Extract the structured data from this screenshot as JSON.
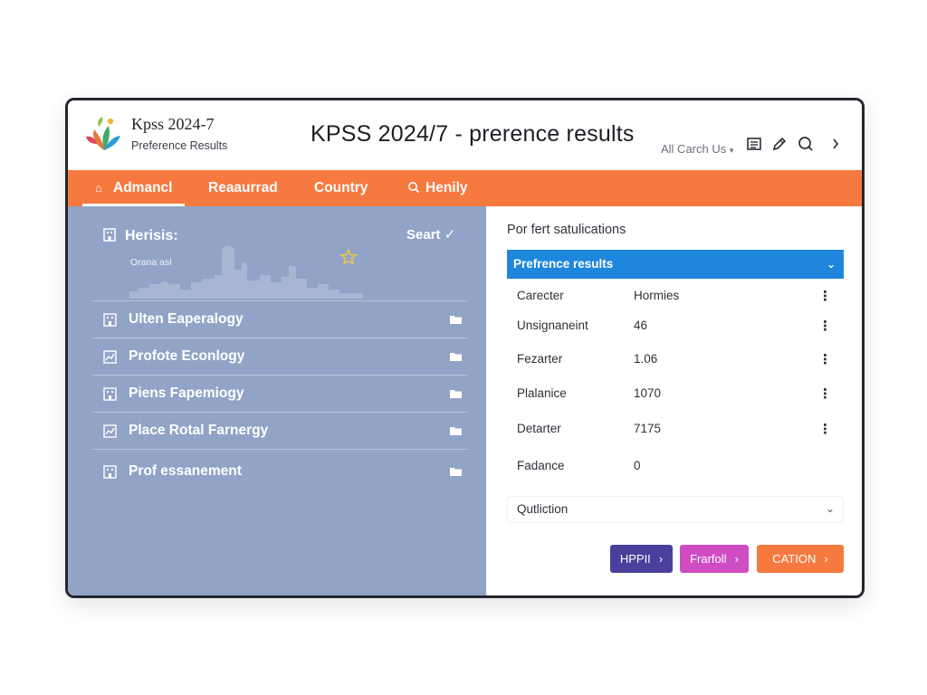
{
  "brand": {
    "title": "Kpss 2024-7",
    "subtitle": "Preference Results"
  },
  "header": {
    "page_title": "KPSS 2024/7 - prerence results",
    "contact_label": "All Carch Us",
    "icons": [
      "list-icon",
      "pen-icon",
      "search-icon",
      "chevron-right-icon"
    ]
  },
  "nav": {
    "items": [
      {
        "label": "Admancl",
        "icon": "home-icon",
        "active": true
      },
      {
        "label": "Reaaurrad",
        "icon": null,
        "active": false
      },
      {
        "label": "Country",
        "icon": null,
        "active": false
      },
      {
        "label": "Henily",
        "icon": "search-icon",
        "active": false
      }
    ]
  },
  "left_panel": {
    "heading": "Herisis:",
    "start_label": "Seart",
    "banner_label": "Orana asl",
    "items": [
      {
        "label": "Ulten Eaperalogy"
      },
      {
        "label": "Profote Econlogy"
      },
      {
        "label": "Piens Fapemiogy"
      },
      {
        "label": "Place Rotal Farnergy"
      },
      {
        "label": "Prof essanement"
      }
    ]
  },
  "right_panel": {
    "title": "Por fert satulications",
    "dropdown_label": "Prefrence results",
    "rows": [
      {
        "key": "Carecter",
        "value": "Hormies",
        "menu": "⋮"
      },
      {
        "key": "Unsignaneint",
        "value": "46",
        "menu": "⋮"
      },
      {
        "key": "Fezarter",
        "value": "1.06",
        "menu": "⋮"
      },
      {
        "key": "Plalanice",
        "value": "1070",
        "menu": "⋮"
      },
      {
        "key": "Detarter",
        "value": "7175",
        "menu": "⋮"
      },
      {
        "key": "Fadance",
        "value": "0",
        "menu": ""
      }
    ],
    "select_label": "Qutliction",
    "buttons": [
      {
        "label": "HPPII",
        "color": "#4b3f9c"
      },
      {
        "label": "Frarfoll",
        "color": "#cf4cc4"
      },
      {
        "label": "CATION",
        "color": "#f6793f"
      }
    ]
  },
  "colors": {
    "accent_orange": "#f6793f",
    "panel_blue": "#91a4c7",
    "dropdown_blue": "#1f86dd"
  }
}
